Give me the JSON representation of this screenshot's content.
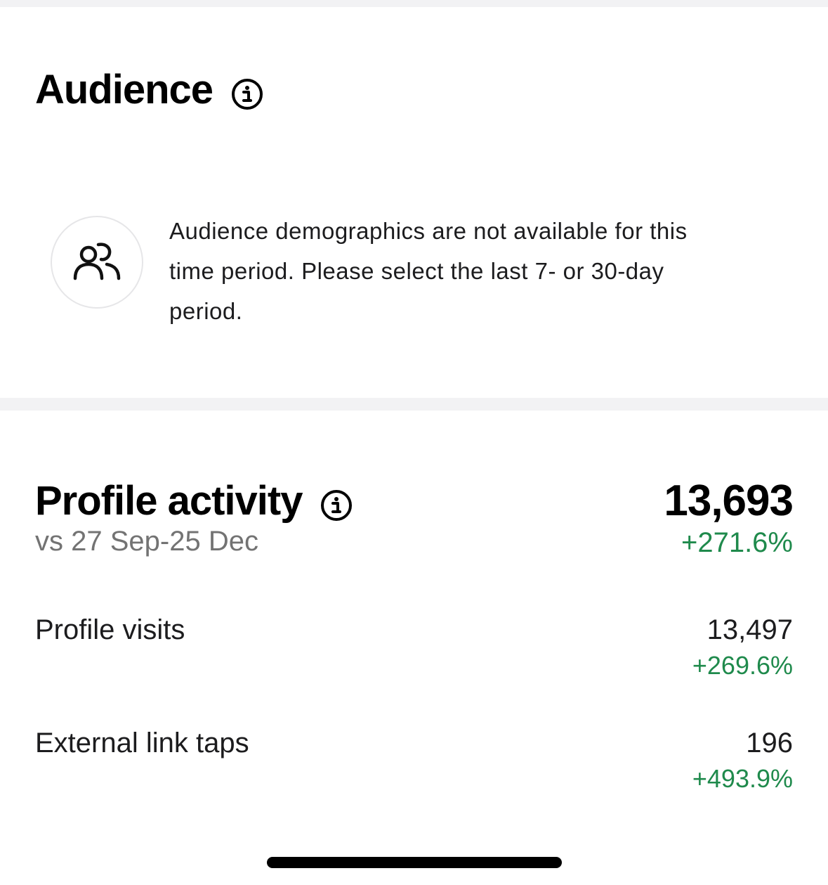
{
  "audience": {
    "title": "Audience",
    "message": "Audience demographics are not available for this time period. Please select the last 7- or 30-day period.",
    "icon": "people-icon"
  },
  "profile_activity": {
    "title": "Profile activity",
    "comparison": "vs 27 Sep-25 Dec",
    "total": "13,693",
    "total_change": "+271.6%",
    "rows": [
      {
        "label": "Profile visits",
        "value": "13,497",
        "change": "+269.6%"
      },
      {
        "label": "External link taps",
        "value": "196",
        "change": "+493.9%"
      }
    ]
  },
  "colors": {
    "positive": "#1f8a4c",
    "muted": "#737373",
    "divider": "#f2f2f4"
  }
}
